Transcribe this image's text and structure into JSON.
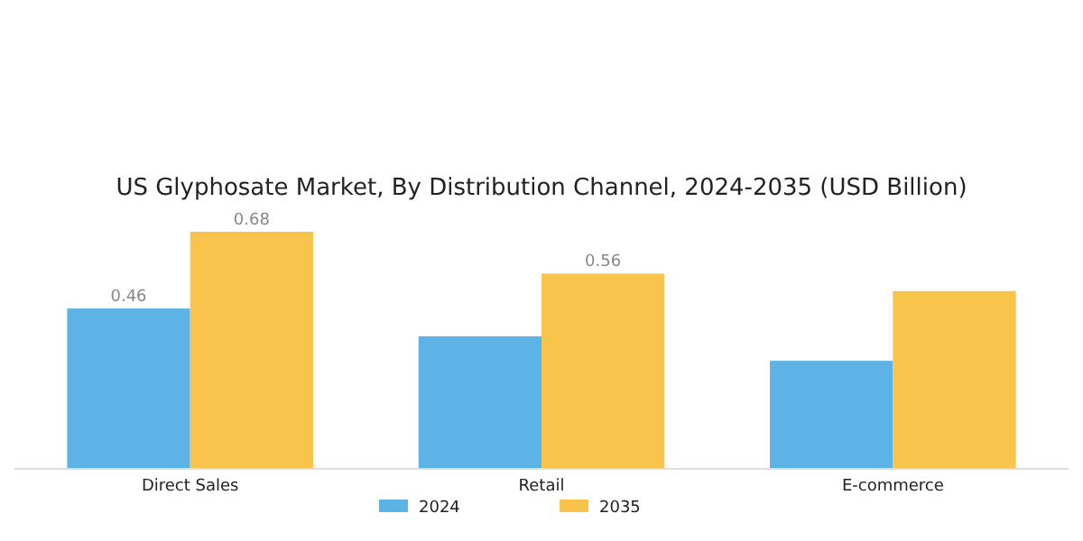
{
  "chart_data": {
    "type": "bar",
    "title": "US Glyphosate Market, By Distribution Channel, 2024-2035 (USD Billion)",
    "categories": [
      "Direct Sales",
      "Retail",
      "E-commerce"
    ],
    "series": [
      {
        "name": "2024",
        "color": "#5db3e6",
        "values": [
          0.46,
          0.38,
          0.31
        ],
        "value_labels": [
          "0.46",
          null,
          null
        ]
      },
      {
        "name": "2035",
        "color": "#f8c44c",
        "values": [
          0.68,
          0.56,
          0.51
        ],
        "value_labels": [
          "0.68",
          "0.56",
          null
        ]
      }
    ],
    "legend": "bottom"
  }
}
